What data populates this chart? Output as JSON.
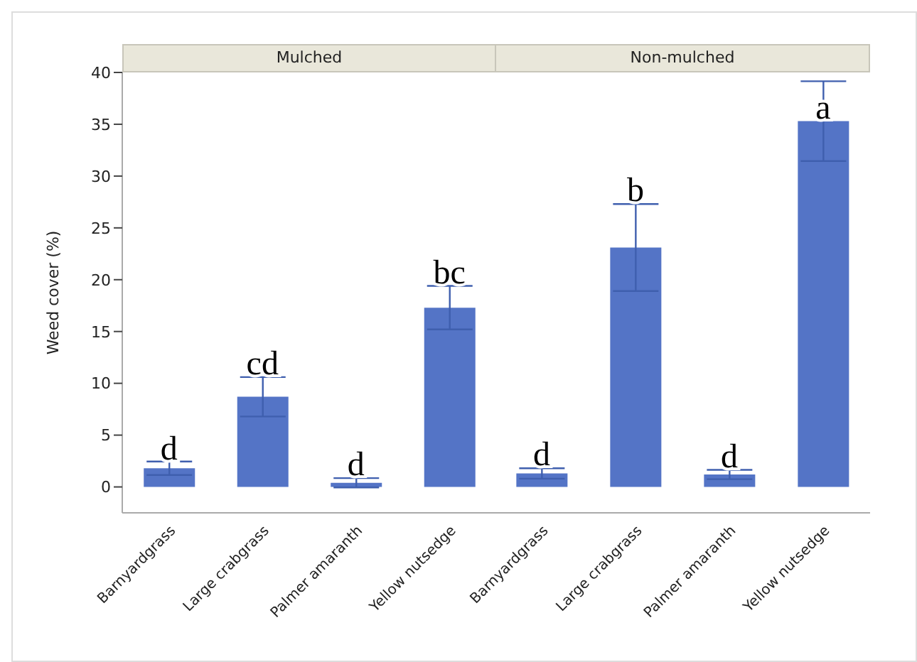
{
  "chart_data": [
    {
      "type": "bar",
      "title": "Mulched",
      "ylabel": "Weed cover (%)",
      "categories": [
        "Barnyardgrass",
        "Large crabgrass",
        "Palmer amaranth",
        "Yellow nutsedge"
      ],
      "values": [
        1.8,
        8.7,
        0.4,
        17.3
      ],
      "errors": [
        0.65,
        1.9,
        0.45,
        2.1
      ],
      "color": "#5474c6",
      "ylim": [
        -2.5,
        40
      ],
      "yticks": [
        0,
        5,
        10,
        15,
        20,
        25,
        30,
        35,
        40
      ],
      "annotations": [
        {
          "text": "d",
          "x": "Barnyardgrass",
          "y": 2.4
        },
        {
          "text": "cd",
          "x": "Large crabgrass",
          "y": 10.6
        },
        {
          "text": "d",
          "x": "Palmer amaranth",
          "y": 0.85
        },
        {
          "text": "bc",
          "x": "Yellow nutsedge",
          "y": 19.4
        }
      ]
    },
    {
      "type": "bar",
      "title": "Non-mulched",
      "categories": [
        "Barnyardgrass",
        "Large crabgrass",
        "Palmer amaranth",
        "Yellow nutsedge"
      ],
      "values": [
        1.3,
        23.1,
        1.2,
        35.3
      ],
      "errors": [
        0.5,
        4.2,
        0.45,
        3.85
      ],
      "color": "#5474c6",
      "ylim": [
        -2.5,
        40
      ],
      "yticks": [
        0,
        5,
        10,
        15,
        20,
        25,
        30,
        35,
        40
      ],
      "tick_labels": "x",
      "annotations": [
        {
          "text": "d",
          "x": "Barnyardgrass",
          "y": 1.8
        },
        {
          "text": "b",
          "x": "Large crabgrass",
          "y": 27.3
        },
        {
          "text": "d",
          "x": "Palmer amaranth",
          "y": 1.6
        },
        {
          "text": "a",
          "x": "Yellow nutsedge",
          "y": 35.3
        }
      ]
    }
  ]
}
